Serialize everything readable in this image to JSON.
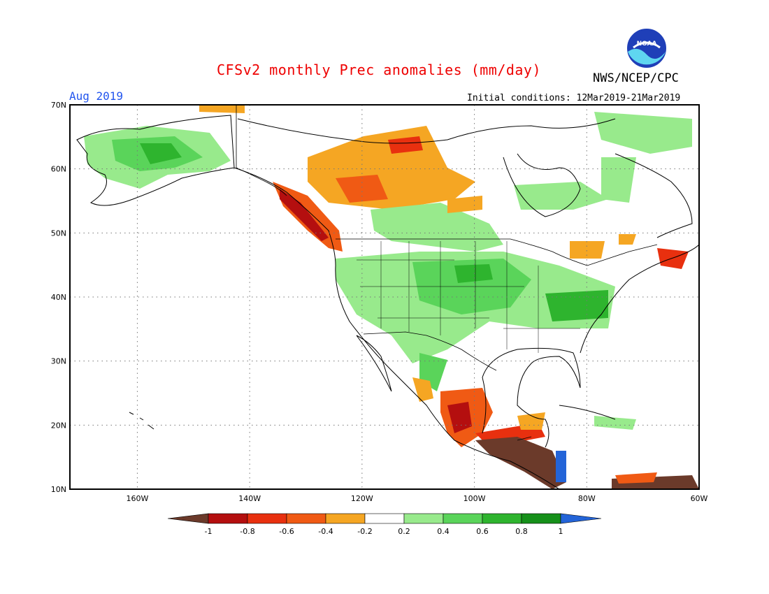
{
  "header": {
    "title": "CFSv2 monthly Prec anomalies (mm/day)",
    "agency": "NWS/NCEP/CPC",
    "month": "Aug 2019",
    "initial_conditions": "Initial conditions: 12Mar2019-21Mar2019",
    "logo_text": "NOAA"
  },
  "map": {
    "lat_labels": [
      "70N",
      "60N",
      "50N",
      "40N",
      "30N",
      "20N",
      "10N"
    ],
    "lon_labels": [
      "160W",
      "140W",
      "120W",
      "100W",
      "80W",
      "60W"
    ],
    "lat_values": [
      70,
      60,
      50,
      40,
      30,
      20,
      10
    ],
    "lon_values": [
      -160,
      -140,
      -120,
      -100,
      -80,
      -60
    ],
    "extent": {
      "lon_min": -172,
      "lon_max": -60,
      "lat_min": 10,
      "lat_max": 70
    },
    "grid": true
  },
  "colorbar": {
    "labels": [
      "-1",
      "-0.8",
      "-0.6",
      "-0.4",
      "-0.2",
      "0.2",
      "0.4",
      "0.6",
      "0.8",
      "1"
    ],
    "colors": [
      "#6b3a2a",
      "#b40f0f",
      "#e8300f",
      "#f05a14",
      "#f5a623",
      "#ffffff",
      "#98ea8c",
      "#5ad45a",
      "#2eb42e",
      "#16901a",
      "#2364d8"
    ]
  },
  "anomaly_regions": [
    {
      "name": "pacific-northwest-coast-dry",
      "level": -0.8
    },
    {
      "name": "northwest-canada-dry",
      "level": -0.4
    },
    {
      "name": "alaska-wet",
      "level": 0.6
    },
    {
      "name": "great-plains-wet",
      "level": 0.6
    },
    {
      "name": "ohio-valley-wet",
      "level": 0.8
    },
    {
      "name": "mexico-west-dry",
      "level": -0.6
    },
    {
      "name": "central-america-very-dry",
      "level": -1
    },
    {
      "name": "quebec-wet",
      "level": 0.4
    },
    {
      "name": "great-lakes-dry",
      "level": -0.4
    }
  ]
}
